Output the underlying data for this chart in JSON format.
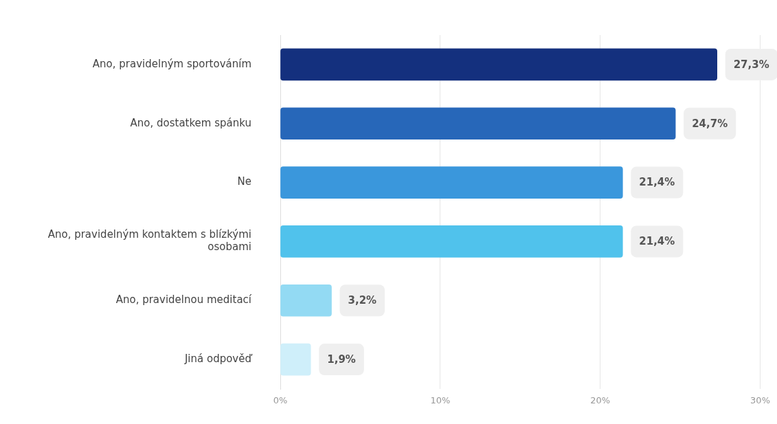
{
  "chart_data": {
    "type": "bar",
    "orientation": "horizontal",
    "categories": [
      "Ano, pravidelným sportováním",
      "Ano, dostatkem spánku",
      "Ne",
      "Ano, pravidelným kontaktem s blízkými osobami",
      "Ano, pravidelnou meditací",
      "Jiná odpověď"
    ],
    "values": [
      27.3,
      24.7,
      21.4,
      21.4,
      3.2,
      1.9
    ],
    "colors": [
      "#14307e",
      "#2767b9",
      "#3a97dc",
      "#50c2ec",
      "#93daf3",
      "#cfeffa"
    ],
    "value_labels": [
      "27,3%",
      "24,7%",
      "21,4%",
      "21,4%",
      "3,2%",
      "1,9%"
    ],
    "xlim": [
      0,
      30
    ],
    "xticks": [
      {
        "value": 0,
        "label": "0%"
      },
      {
        "value": 10,
        "label": "10%"
      },
      {
        "value": 20,
        "label": "20%"
      },
      {
        "value": 30,
        "label": "30%"
      }
    ],
    "grid": "x",
    "legend": false
  }
}
